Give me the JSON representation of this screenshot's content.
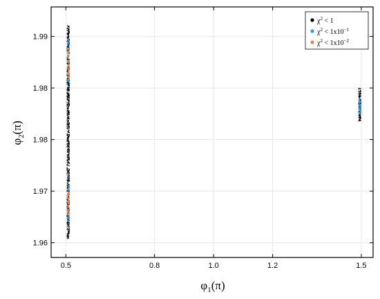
{
  "chart_data": {
    "type": "scatter",
    "title": "",
    "xlabel": "φ1(π)",
    "xlabel_parts": {
      "main": "φ",
      "sub": "1",
      "rest": "(π)"
    },
    "ylabel": "φ2(π)",
    "ylabel_parts": {
      "main": "φ",
      "sub": "2",
      "rest": "(π)"
    },
    "xlim": [
      0.45,
      1.54
    ],
    "ylim": [
      1.958,
      1.992
    ],
    "x_ticks": [
      0.5,
      0.8,
      1.0,
      1.2,
      1.5
    ],
    "x_tick_labels": [
      "0.5",
      "0.8",
      "1.0",
      "1.2",
      "1.5"
    ],
    "y_ticks": [
      1.96,
      1.967,
      1.974,
      1.981,
      1.988
    ],
    "y_tick_labels": [
      "1.96",
      "1.97",
      "1.98",
      "1.98",
      "1.99"
    ],
    "grid": true,
    "legend_position": "top-right",
    "series": [
      {
        "name": "χ² < 1",
        "legend": {
          "base": "χ",
          "sup": "2",
          "rest": " < 1"
        },
        "color": "#000000",
        "clusters": [
          {
            "x": 0.508,
            "x_spread": 0.004,
            "y_range": [
              1.9605,
              1.9895
            ]
          },
          {
            "x": 1.495,
            "x_spread": 0.004,
            "y_range": [
              1.9765,
              1.981
            ]
          }
        ]
      },
      {
        "name": "χ² < 1x10⁻¹",
        "legend": {
          "base": "χ",
          "sup": "2",
          "rest": " < 1x10",
          "exp": "−1"
        },
        "color": "#2a98e0",
        "clusters": [
          {
            "x": 0.508,
            "x_spread": 0.003,
            "y_range": [
              1.963,
              1.969
            ]
          },
          {
            "x": 0.508,
            "x_spread": 0.003,
            "y_range": [
              1.9815,
              1.988
            ]
          },
          {
            "x": 1.495,
            "x_spread": 0.003,
            "y_range": [
              1.9775,
              1.9795
            ]
          }
        ]
      },
      {
        "name": "χ² < 1x10⁻²",
        "legend": {
          "base": "χ",
          "sup": "2",
          "rest": " < 1x10",
          "exp": "−2"
        },
        "color": "#f08040",
        "clusters": [
          {
            "x": 0.508,
            "x_spread": 0.002,
            "y_range": [
              1.9635,
              1.967
            ]
          },
          {
            "x": 0.508,
            "x_spread": 0.002,
            "y_range": [
              1.9825,
              1.9865
            ]
          }
        ]
      }
    ]
  }
}
